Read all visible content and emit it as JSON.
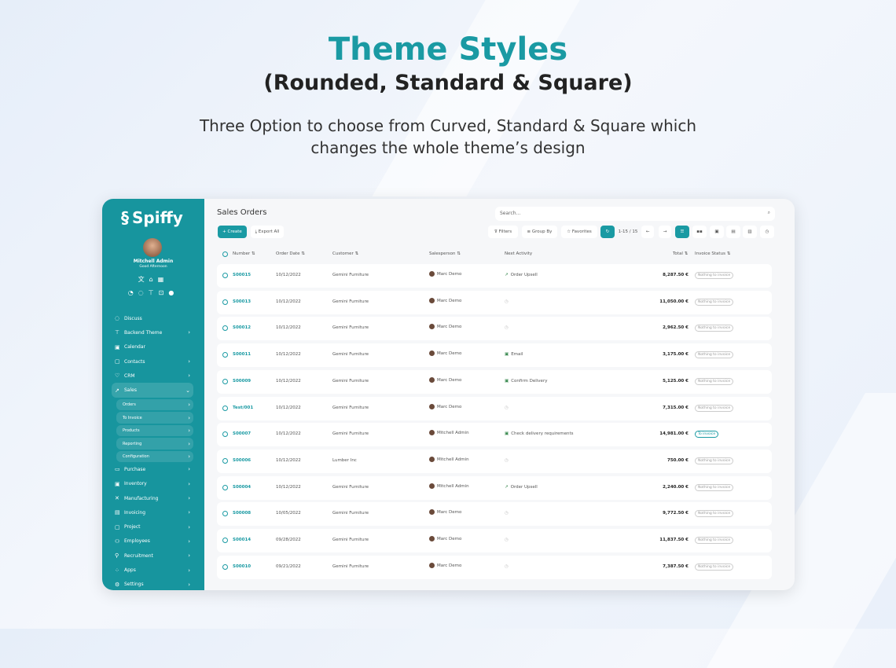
{
  "hero": {
    "title": "Theme Styles",
    "subtitle": "(Rounded, Standard & Square)",
    "description_line1": "Three Option to choose from Curved, Standard & Square which",
    "description_line2": "changes the whole theme’s design"
  },
  "colors": {
    "accent": "#1a9aa3"
  },
  "sidebar": {
    "logo": "Spiffy",
    "user_name": "Mitchell Admin",
    "greeting": "Good Afternoon",
    "badges": [
      "1",
      "1"
    ],
    "items": [
      {
        "label": "Discuss",
        "icon": "chat-icon",
        "chevron": false
      },
      {
        "label": "Backend Theme",
        "icon": "paint-roller-icon",
        "chevron": true
      },
      {
        "label": "Calendar",
        "icon": "calendar-icon",
        "chevron": false
      },
      {
        "label": "Contacts",
        "icon": "contacts-icon",
        "chevron": true
      },
      {
        "label": "CRM",
        "icon": "crm-icon",
        "chevron": true
      },
      {
        "label": "Sales",
        "icon": "chart-icon",
        "chevron": true,
        "active": true,
        "children": [
          "Orders",
          "To Invoice",
          "Products",
          "Reporting",
          "Configuration"
        ]
      },
      {
        "label": "Purchase",
        "icon": "card-icon",
        "chevron": true
      },
      {
        "label": "Inventory",
        "icon": "box-icon",
        "chevron": true
      },
      {
        "label": "Manufacturing",
        "icon": "tools-icon",
        "chevron": true
      },
      {
        "label": "Invoicing",
        "icon": "invoice-icon",
        "chevron": true
      },
      {
        "label": "Project",
        "icon": "project-icon",
        "chevron": true
      },
      {
        "label": "Employees",
        "icon": "users-icon",
        "chevron": true
      },
      {
        "label": "Recruitment",
        "icon": "user-add-icon",
        "chevron": true
      },
      {
        "label": "Apps",
        "icon": "apps-icon",
        "chevron": true
      },
      {
        "label": "Settings",
        "icon": "gear-icon",
        "chevron": true
      }
    ]
  },
  "main": {
    "title": "Sales Orders",
    "search_placeholder": "Search...",
    "create": "+ Create",
    "export": "Export All",
    "filters": "Filters",
    "group_by": "Group By",
    "favorites": "Favorites",
    "pager": "1-15 / 15",
    "columns": [
      "Number",
      "Order Date",
      "Customer",
      "Salesperson",
      "Next Activity",
      "Total",
      "Invoice Status"
    ],
    "rows": [
      [
        "S00015",
        "10/12/2022",
        "Gemini Furniture",
        "Marc Demo",
        "Order Upsell",
        "8,287.50 €",
        "Nothing to invoice"
      ],
      [
        "S00013",
        "10/12/2022",
        "Gemini Furniture",
        "Marc Demo",
        "",
        "11,050.00 €",
        "Nothing to invoice"
      ],
      [
        "S00012",
        "10/12/2022",
        "Gemini Furniture",
        "Marc Demo",
        "",
        "2,962.50 €",
        "Nothing to invoice"
      ],
      [
        "S00011",
        "10/12/2022",
        "Gemini Furniture",
        "Marc Demo",
        "Email",
        "3,175.00 €",
        "Nothing to invoice"
      ],
      [
        "S00009",
        "10/12/2022",
        "Gemini Furniture",
        "Marc Demo",
        "Confirm Delivery",
        "5,125.00 €",
        "Nothing to invoice"
      ],
      [
        "Test/001",
        "10/12/2022",
        "Gemini Furniture",
        "Marc Demo",
        "",
        "7,315.00 €",
        "Nothing to invoice"
      ],
      [
        "S00007",
        "10/12/2022",
        "Gemini Furniture",
        "Mitchell Admin",
        "Check delivery requirements",
        "14,981.00 €",
        "To invoice"
      ],
      [
        "S00006",
        "10/12/2022",
        "Lumber Inc",
        "Mitchell Admin",
        "",
        "750.00 €",
        "Nothing to invoice"
      ],
      [
        "S00004",
        "10/12/2022",
        "Gemini Furniture",
        "Mitchell Admin",
        "Order Upsell",
        "2,240.00 €",
        "Nothing to invoice"
      ],
      [
        "S00008",
        "10/05/2022",
        "Gemini Furniture",
        "Marc Demo",
        "",
        "9,772.50 €",
        "Nothing to invoice"
      ],
      [
        "S00014",
        "09/28/2022",
        "Gemini Furniture",
        "Marc Demo",
        "",
        "11,837.50 €",
        "Nothing to invoice"
      ],
      [
        "S00010",
        "09/21/2022",
        "Gemini Furniture",
        "Marc Demo",
        "",
        "7,387.50 €",
        "Nothing to invoice"
      ]
    ]
  },
  "floating_tools": [
    "star-icon",
    "search-icon",
    "fullscreen-icon",
    "zoom-in-icon",
    "bookmark-icon"
  ]
}
